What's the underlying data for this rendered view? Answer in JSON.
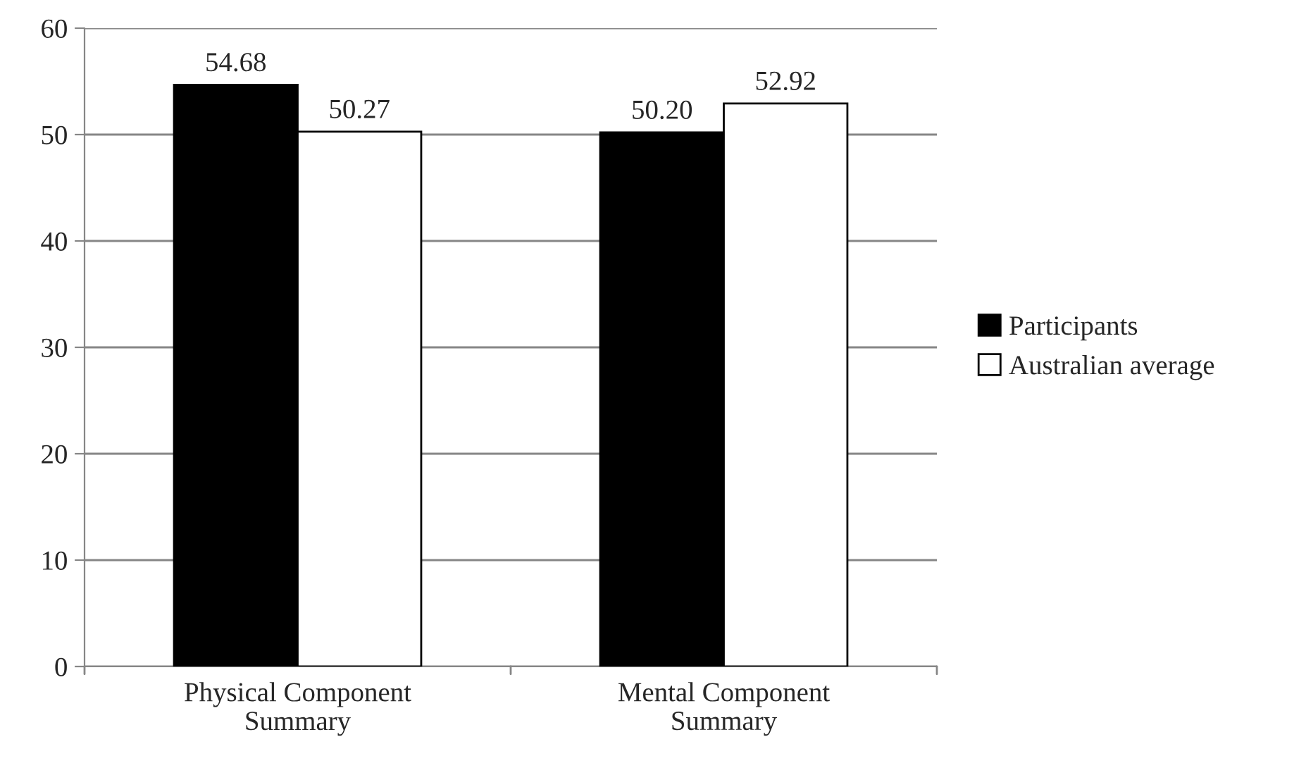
{
  "chart_data": {
    "type": "bar",
    "categories": [
      "Physical Component\nSummary",
      "Mental Component\nSummary"
    ],
    "series": [
      {
        "name": "Participants",
        "color": "#000000",
        "values": [
          54.68,
          50.2
        ],
        "value_labels": [
          "54.68",
          "50.20"
        ]
      },
      {
        "name": "Australian average",
        "color": "#ffffff",
        "values": [
          50.27,
          52.92
        ],
        "value_labels": [
          "50.27",
          "52.92"
        ]
      }
    ],
    "ylim": [
      0,
      60
    ],
    "yticks": [
      0,
      10,
      20,
      30,
      40,
      50,
      60
    ],
    "grid": "y",
    "legend": "right"
  }
}
